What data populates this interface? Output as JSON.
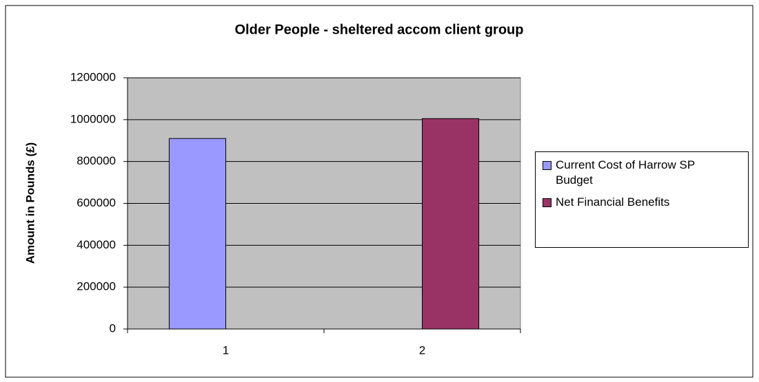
{
  "chart_data": {
    "type": "bar",
    "title": "Older People - sheltered accom client group",
    "y_label": "Amount in Pounds (£)",
    "categories": [
      "1",
      "2"
    ],
    "series": [
      {
        "name": "Current Cost of Harrow SP Budget",
        "color": "#9999ff",
        "values": [
          910000,
          null
        ]
      },
      {
        "name": "Net Financial Benefits",
        "color": "#993366",
        "values": [
          null,
          1005000
        ]
      }
    ],
    "ylim": [
      0,
      1200000
    ],
    "yticks": [
      0,
      200000,
      400000,
      600000,
      800000,
      1000000,
      1200000
    ],
    "grid": true,
    "legend": "right",
    "plot_background": "#c0c0c0"
  }
}
